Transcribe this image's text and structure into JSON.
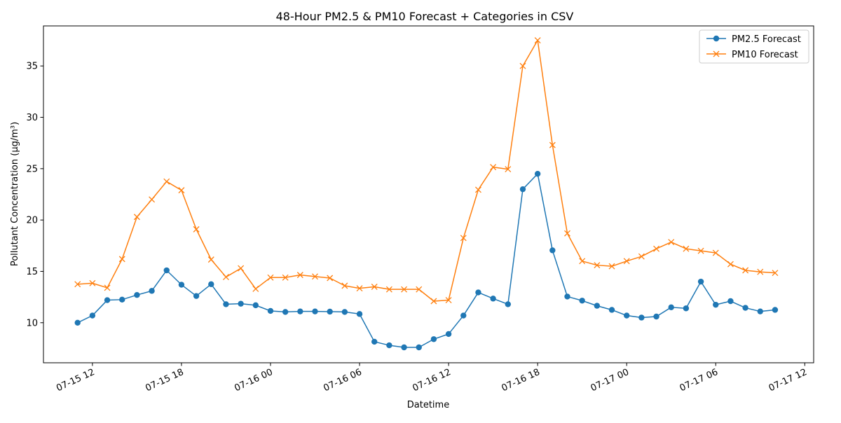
{
  "chart_data": {
    "type": "line",
    "title": "48-Hour PM2.5 & PM10 Forecast + Categories in CSV",
    "xlabel": "Datetime",
    "ylabel": "Pollutant Concentration (µg/m³)",
    "x_start": "2025-07-15T11:00",
    "x_step_hours": 1,
    "xlim_hours": [
      -2.3,
      49.6
    ],
    "ylim": [
      6.1,
      38.9
    ],
    "x_ticks": [
      {
        "hour": 1,
        "label": "07-15 12"
      },
      {
        "hour": 7,
        "label": "07-15 18"
      },
      {
        "hour": 13,
        "label": "07-16 00"
      },
      {
        "hour": 19,
        "label": "07-16 06"
      },
      {
        "hour": 25,
        "label": "07-16 12"
      },
      {
        "hour": 31,
        "label": "07-16 18"
      },
      {
        "hour": 37,
        "label": "07-17 00"
      },
      {
        "hour": 43,
        "label": "07-17 06"
      },
      {
        "hour": 49,
        "label": "07-17 12"
      }
    ],
    "y_ticks": [
      10,
      15,
      20,
      25,
      30,
      35
    ],
    "grid": false,
    "legend_position": "top-right",
    "series": [
      {
        "name": "PM2.5 Forecast",
        "color": "#1f77b4",
        "marker": "circle",
        "values": [
          10.0,
          10.7,
          12.2,
          12.25,
          12.7,
          13.1,
          15.1,
          13.7,
          12.6,
          13.75,
          11.8,
          11.85,
          11.7,
          11.15,
          11.05,
          11.1,
          11.1,
          11.08,
          11.05,
          10.85,
          8.15,
          7.8,
          7.6,
          7.6,
          8.4,
          8.9,
          10.7,
          12.95,
          12.35,
          11.8,
          23.0,
          24.5,
          17.05,
          12.55,
          12.15,
          11.65,
          11.25,
          10.7,
          10.5,
          10.6,
          11.5,
          11.4,
          14.0,
          11.75,
          12.1,
          11.45,
          11.1,
          11.25
        ]
      },
      {
        "name": "PM10 Forecast",
        "color": "#ff7f0e",
        "marker": "x",
        "values": [
          13.75,
          13.85,
          13.4,
          16.2,
          20.3,
          22.0,
          23.75,
          22.9,
          19.1,
          16.15,
          14.45,
          15.3,
          13.3,
          14.4,
          14.4,
          14.65,
          14.5,
          14.35,
          13.6,
          13.35,
          13.5,
          13.25,
          13.25,
          13.25,
          12.1,
          12.2,
          18.25,
          22.95,
          25.15,
          24.95,
          35.0,
          37.5,
          27.3,
          18.7,
          16.0,
          15.6,
          15.5,
          16.0,
          16.45,
          17.2,
          17.85,
          17.2,
          17.0,
          16.8,
          15.7,
          15.1,
          14.95,
          14.85
        ]
      }
    ]
  }
}
